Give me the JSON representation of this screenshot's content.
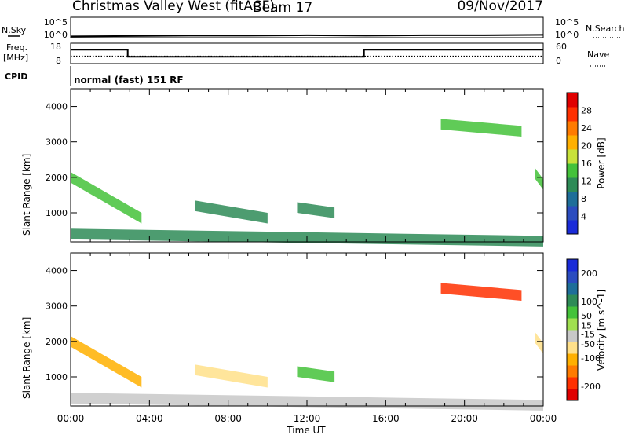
{
  "header": {
    "title": "Christmas Valley West (fitACF)",
    "beam": "Beam 17",
    "date": "09/Nov/2017"
  },
  "nsky": {
    "label": "N.Sky",
    "ticks_left": [
      "10^5",
      "10^0"
    ],
    "ticks_right": [
      "10^5",
      "10^0"
    ],
    "search_label": "N.Search"
  },
  "freq": {
    "label_line1": "Freq.",
    "label_line2": "[MHz]",
    "ticks_left": [
      "18",
      "8"
    ],
    "ticks_right": [
      "60",
      "0"
    ],
    "nave_label": "Nave"
  },
  "cpid": {
    "label": "CPID",
    "mode": "normal (fast) 151 RF"
  },
  "axes": {
    "xlabel": "Time UT",
    "ylabel": "Slant Range [km]",
    "xticks": [
      "00:00",
      "04:00",
      "08:00",
      "12:00",
      "16:00",
      "20:00",
      "00:00"
    ],
    "yticks": [
      "4000",
      "3000",
      "2000",
      "1000"
    ]
  },
  "colors": {
    "power": [
      "#1a2bd8",
      "#2b4cbf",
      "#1e6e99",
      "#2e8b57",
      "#44c23a",
      "#c8e23a",
      "#ffb000",
      "#ff7b00",
      "#ff3000",
      "#e00000"
    ],
    "velocity": [
      "#e00000",
      "#ff3000",
      "#ff7b00",
      "#ffb000",
      "#ffe08a",
      "#c8c8c8",
      "#a0e050",
      "#44c23a",
      "#2e8b57",
      "#1e6e99",
      "#2b4cbf",
      "#1a2bd8"
    ]
  },
  "chart_data": [
    {
      "type": "line",
      "title": "N.Sky / N.Search",
      "x_hours": [
        0,
        3,
        6,
        9,
        12,
        15,
        18,
        21,
        24
      ],
      "noise_sky_log10": [
        0.3,
        0.4,
        0.5,
        0.5,
        0.6,
        0.5,
        0.6,
        0.6,
        0.7
      ],
      "ylim_log10": [
        0,
        5
      ]
    },
    {
      "type": "line",
      "title": "Frequency / Nave",
      "segments": [
        {
          "start_hour": 0.0,
          "end_hour": 2.9,
          "freq_mhz": 14.8
        },
        {
          "start_hour": 2.9,
          "end_hour": 14.9,
          "freq_mhz": 11.4
        },
        {
          "start_hour": 14.9,
          "end_hour": 24.0,
          "freq_mhz": 14.8
        }
      ],
      "nave_mean": 22,
      "ylim_freq": [
        8,
        18
      ],
      "ylim_nave": [
        0,
        60
      ]
    },
    {
      "type": "heatmap",
      "title": "Power [dB]",
      "xlabel": "Time UT",
      "ylabel": "Slant Range [km]",
      "xlim_hours": [
        0,
        24
      ],
      "ylim_km": [
        180,
        4500
      ],
      "colorbar_label": "Power [dB]",
      "colorbar_ticks": [
        4,
        8,
        12,
        16,
        20,
        24,
        28
      ],
      "colorbar_range": [
        0,
        32
      ],
      "echo_regions": [
        {
          "t0": 0.0,
          "t1": 3.6,
          "r0": 2000,
          "r1": 850,
          "value": 14
        },
        {
          "t0": 6.3,
          "t1": 10.0,
          "r0": 1200,
          "r1": 850,
          "value": 10
        },
        {
          "t0": 11.5,
          "t1": 13.4,
          "r0": 1150,
          "r1": 1000,
          "value": 11
        },
        {
          "t0": 18.8,
          "t1": 22.9,
          "r0": 3500,
          "r1": 3300,
          "value": 15
        },
        {
          "t0": 23.6,
          "t1": 24.0,
          "r0": 2100,
          "r1": 1800,
          "value": 14
        },
        {
          "t0": 0.0,
          "t1": 24.0,
          "r0": 400,
          "r1": 200,
          "value": 12
        }
      ]
    },
    {
      "type": "heatmap",
      "title": "Velocity [m s^-1]",
      "xlabel": "Time UT",
      "ylabel": "Slant Range [km]",
      "xlim_hours": [
        0,
        24
      ],
      "ylim_km": [
        180,
        4500
      ],
      "colorbar_label": "Velocity [m s^-1]",
      "colorbar_ticks": [
        200,
        100,
        50,
        15,
        -15,
        -50,
        -100,
        -200
      ],
      "colorbar_range": [
        -250,
        250
      ],
      "echo_regions": [
        {
          "t0": 0.0,
          "t1": 3.6,
          "r0": 2000,
          "r1": 850,
          "value": -120
        },
        {
          "t0": 6.3,
          "t1": 10.0,
          "r0": 1200,
          "r1": 850,
          "value": -80
        },
        {
          "t0": 11.5,
          "t1": 13.4,
          "r0": 1150,
          "r1": 1000,
          "value": 60
        },
        {
          "t0": 18.8,
          "t1": 22.9,
          "r0": 3500,
          "r1": 3300,
          "value": -200
        },
        {
          "t0": 23.6,
          "t1": 24.0,
          "r0": 2100,
          "r1": 1800,
          "value": -60
        },
        {
          "t0": 0.0,
          "t1": 24.0,
          "r0": 400,
          "r1": 200,
          "value": -20
        }
      ]
    }
  ]
}
